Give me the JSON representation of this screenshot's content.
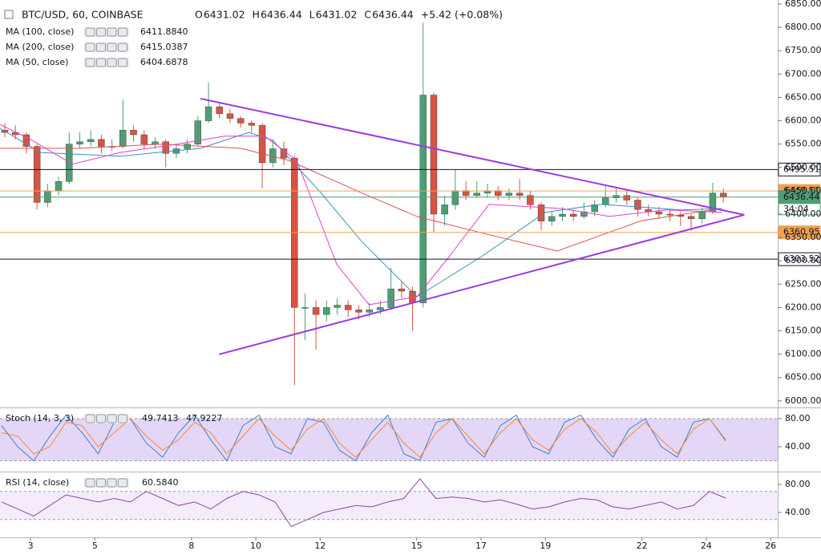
{
  "chart_data": [
    {
      "type": "candlestick",
      "title": "BTC/USD, 60, COINBASE",
      "ohlc": [
        {
          "label": "O",
          "value": 6431.02
        },
        {
          "label": "H",
          "value": 6436.44
        },
        {
          "label": "L",
          "value": 6431.02
        },
        {
          "label": "C",
          "value": 6436.44
        }
      ],
      "change": "+5.42 (+0.08%)",
      "up_color": "#4f9e73",
      "down_color": "#d75442",
      "xlim": [
        2.05,
        26.22
      ],
      "xticks": [
        3,
        5,
        8,
        10,
        12,
        15,
        17,
        19,
        22,
        24,
        26
      ],
      "ylim": [
        5986,
        6858.6
      ],
      "yticks": [
        {
          "value": 6000,
          "label": "6000.00"
        },
        {
          "value": 6050,
          "label": "6050.00"
        },
        {
          "value": 6100,
          "label": "6100.00"
        },
        {
          "value": 6150,
          "label": "6150.00"
        },
        {
          "value": 6200,
          "label": "6200.00"
        },
        {
          "value": 6250,
          "label": "6250.00"
        },
        {
          "value": 6300,
          "label": "6300.00"
        },
        {
          "value": 6350,
          "label": "6350.00"
        },
        {
          "value": 6400,
          "label": "6400.00"
        },
        {
          "value": 6450,
          "label": "6450.00"
        },
        {
          "value": 6500,
          "label": "6500.00"
        },
        {
          "value": 6550,
          "label": "6550.00"
        },
        {
          "value": 6600,
          "label": "6600.00"
        },
        {
          "value": 6650,
          "label": "6650.00"
        },
        {
          "value": 6700,
          "label": "6700.00"
        },
        {
          "value": 6750,
          "label": "6750.00"
        },
        {
          "value": 6800,
          "label": "6800.00"
        },
        {
          "value": 6850,
          "label": "6850.00"
        }
      ],
      "x": [
        2.2,
        2.53,
        2.87,
        3.2,
        3.53,
        3.87,
        4.2,
        4.53,
        4.87,
        5.2,
        5.53,
        5.87,
        6.2,
        6.53,
        6.87,
        7.2,
        7.53,
        7.87,
        8.2,
        8.53,
        8.87,
        9.2,
        9.53,
        9.87,
        10.2,
        10.53,
        10.87,
        11.2,
        11.53,
        11.87,
        12.2,
        12.53,
        12.87,
        13.2,
        13.53,
        13.87,
        14.2,
        14.53,
        14.87,
        15.2,
        15.53,
        15.87,
        16.2,
        16.53,
        16.87,
        17.2,
        17.53,
        17.87,
        18.2,
        18.53,
        18.87,
        19.2,
        19.53,
        19.87,
        20.2,
        20.53,
        20.87,
        21.2,
        21.53,
        21.87,
        22.2,
        22.53,
        22.87,
        23.2,
        23.53,
        23.87,
        24.2,
        24.53
      ],
      "open": [
        6580,
        6575,
        6570,
        6545,
        6425,
        6450,
        6470,
        6550,
        6555,
        6560,
        6545,
        6545,
        6580,
        6570,
        6550,
        6555,
        6530,
        6540,
        6550,
        6600,
        6630,
        6615,
        6605,
        6595,
        6590,
        6510,
        6540,
        6520,
        6200,
        6200,
        6185,
        6200,
        6205,
        6195,
        6190,
        6195,
        6200,
        6240,
        6235,
        6210,
        6655,
        6400,
        6420,
        6450,
        6440,
        6445,
        6450,
        6440,
        6445,
        6440,
        6420,
        6385,
        6395,
        6400,
        6395,
        6405,
        6420,
        6435,
        6440,
        6430,
        6410,
        6405,
        6400,
        6398,
        6395,
        6390,
        6405,
        6445
      ],
      "high": [
        6595,
        6590,
        6575,
        6550,
        6465,
        6480,
        6575,
        6575,
        6580,
        6570,
        6560,
        6645,
        6590,
        6580,
        6565,
        6560,
        6550,
        6560,
        6610,
        6682,
        6640,
        6625,
        6610,
        6600,
        6595,
        6560,
        6555,
        6525,
        6230,
        6215,
        6215,
        6220,
        6215,
        6205,
        6210,
        6215,
        6285,
        6255,
        6245,
        6810,
        6660,
        6440,
        6495,
        6470,
        6470,
        6465,
        6460,
        6455,
        6475,
        6450,
        6425,
        6405,
        6415,
        6410,
        6425,
        6430,
        6460,
        6455,
        6450,
        6435,
        6420,
        6415,
        6410,
        6405,
        6400,
        6415,
        6467,
        6455
      ],
      "low": [
        6565,
        6560,
        6530,
        6410,
        6415,
        6440,
        6465,
        6540,
        6545,
        6530,
        6535,
        6540,
        6555,
        6540,
        6540,
        6500,
        6520,
        6530,
        6545,
        6595,
        6605,
        6595,
        6585,
        6575,
        6455,
        6500,
        6505,
        6034,
        6130,
        6110,
        6170,
        6185,
        6180,
        6175,
        6180,
        6185,
        6195,
        6220,
        6150,
        6200,
        6360,
        6375,
        6410,
        6430,
        6435,
        6435,
        6430,
        6430,
        6430,
        6410,
        6365,
        6375,
        6385,
        6385,
        6390,
        6395,
        6415,
        6425,
        6420,
        6395,
        6395,
        6390,
        6385,
        6375,
        6365,
        6380,
        6400,
        6425
      ],
      "close": [
        6575,
        6570,
        6545,
        6425,
        6450,
        6470,
        6550,
        6555,
        6560,
        6545,
        6545,
        6580,
        6570,
        6550,
        6555,
        6530,
        6540,
        6550,
        6600,
        6630,
        6615,
        6605,
        6595,
        6590,
        6510,
        6540,
        6520,
        6200,
        6200,
        6185,
        6200,
        6205,
        6195,
        6190,
        6195,
        6200,
        6240,
        6235,
        6210,
        6655,
        6400,
        6420,
        6450,
        6440,
        6445,
        6450,
        6440,
        6445,
        6440,
        6420,
        6385,
        6395,
        6400,
        6395,
        6405,
        6420,
        6435,
        6440,
        6430,
        6410,
        6405,
        6400,
        6398,
        6395,
        6390,
        6405,
        6445,
        6436.44
      ],
      "series": [
        {
          "name": "MA (100, close)",
          "last": "6411.8840",
          "color": "#3a8fb7",
          "x": [
            2.05,
            3.3,
            5.79,
            8.28,
            9.78,
            10.53,
            12.02,
            13.27,
            15.01,
            17.01,
            19.0,
            20.74,
            23.23,
            24.48
          ],
          "values": [
            6584,
            6532,
            6524,
            6541,
            6575,
            6558,
            6446,
            6343,
            6223,
            6309,
            6404,
            6421,
            6409,
            6412
          ]
        },
        {
          "name": "MA (200, close)",
          "last": "6415.0387",
          "color": "#d9534f",
          "x": [
            2.05,
            4.54,
            7.04,
            9.53,
            11.02,
            13.27,
            15.01,
            17.01,
            19.37,
            21.99,
            24.48
          ],
          "values": [
            6541,
            6541,
            6550,
            6541,
            6515,
            6446,
            6395,
            6360,
            6321,
            6386,
            6412
          ]
        },
        {
          "name": "MA (50, close)",
          "last": "6404.6878",
          "color": "#e040d0",
          "x": [
            2.05,
            3.05,
            4.3,
            5.79,
            7.54,
            9.03,
            10.28,
            11.27,
            12.52,
            13.52,
            15.01,
            16.01,
            17.25,
            19.5,
            20.99,
            22.74,
            24.48
          ],
          "values": [
            6592,
            6558,
            6507,
            6532,
            6550,
            6567,
            6567,
            6515,
            6292,
            6206,
            6223,
            6309,
            6421,
            6412,
            6395,
            6409,
            6404
          ]
        }
      ],
      "price_lines": [
        {
          "value": 6495.51,
          "color": "#131722",
          "text_color": "#131722",
          "box": "#ffffff"
        },
        {
          "value": 6449.51,
          "color": "#f0a050",
          "text_color": "#ffffff",
          "box": "#f0a050"
        },
        {
          "value": 6436.44,
          "color": "#4f9e73",
          "text_color": "#ffffff",
          "box": "#4f9e73"
        },
        {
          "value": 6360.95,
          "color": "#f0a050",
          "text_color": "#ffffff",
          "box": "#f0a050"
        },
        {
          "value": 6303.52,
          "color": "#131722",
          "text_color": "#131722",
          "box": "#ffffff"
        }
      ],
      "countdown": "34:04",
      "trendlines": [
        {
          "x": [
            8.28,
            25.18
          ],
          "y": [
            6647.4,
            6398.4
          ],
          "color": "#9b3be0"
        },
        {
          "x": [
            8.86,
            25.18
          ],
          "y": [
            6099.7,
            6398.4
          ],
          "color": "#9b3be0"
        }
      ]
    },
    {
      "type": "oscillator",
      "title": "Stoch (14, 3, 3)",
      "ylim": [
        4.6,
        93.7
      ],
      "yticks": [
        {
          "value": 80,
          "label": "80.00"
        },
        {
          "value": 40,
          "label": "40.00"
        }
      ],
      "band": [
        20,
        80
      ],
      "band_color": "#d8c4f2",
      "x": [
        2.1,
        2.6,
        3.1,
        3.6,
        4.1,
        4.6,
        5.1,
        5.6,
        6.1,
        6.6,
        7.1,
        7.6,
        8.1,
        8.6,
        9.1,
        9.6,
        10.1,
        10.6,
        11.1,
        11.6,
        12.1,
        12.6,
        13.1,
        13.6,
        14.1,
        14.6,
        15.1,
        15.6,
        16.1,
        16.6,
        17.1,
        17.6,
        18.1,
        18.6,
        19.1,
        19.6,
        20.1,
        20.6,
        21.1,
        21.6,
        22.1,
        22.6,
        23.1,
        23.6,
        24.1,
        24.6
      ],
      "series": [
        {
          "last": "49.7413",
          "color": "#3d85c6",
          "values": [
            70,
            40,
            20,
            55,
            85,
            60,
            30,
            75,
            80,
            45,
            25,
            60,
            85,
            50,
            20,
            70,
            85,
            40,
            30,
            80,
            75,
            35,
            20,
            60,
            85,
            30,
            20,
            75,
            80,
            45,
            25,
            70,
            85,
            40,
            30,
            75,
            85,
            50,
            25,
            65,
            80,
            40,
            25,
            75,
            80,
            49.74
          ]
        },
        {
          "last": "47.9227",
          "color": "#f08b3c",
          "values": [
            60,
            55,
            30,
            40,
            75,
            70,
            40,
            60,
            80,
            55,
            35,
            50,
            75,
            60,
            30,
            55,
            80,
            55,
            35,
            65,
            80,
            45,
            25,
            50,
            75,
            45,
            25,
            60,
            80,
            55,
            30,
            60,
            80,
            50,
            35,
            65,
            80,
            60,
            30,
            55,
            75,
            50,
            30,
            65,
            80,
            47.92
          ]
        }
      ]
    },
    {
      "type": "oscillator",
      "title": "RSI (14, close)",
      "ylim": [
        4.6,
        96
      ],
      "yticks": [
        {
          "value": 80,
          "label": "80.00"
        },
        {
          "value": 40,
          "label": "40.00"
        }
      ],
      "band": [
        30,
        70
      ],
      "band_color": "#efe4f9",
      "x": [
        2.1,
        2.6,
        3.1,
        3.6,
        4.1,
        4.6,
        5.1,
        5.6,
        6.1,
        6.6,
        7.1,
        7.6,
        8.1,
        8.6,
        9.1,
        9.6,
        10.1,
        10.6,
        11.1,
        11.6,
        12.1,
        12.6,
        13.1,
        13.6,
        14.1,
        14.6,
        15.1,
        15.6,
        16.1,
        16.6,
        17.1,
        17.6,
        18.1,
        18.6,
        19.1,
        19.6,
        20.1,
        20.6,
        21.1,
        21.6,
        22.1,
        22.6,
        23.1,
        23.6,
        24.1,
        24.6
      ],
      "series": [
        {
          "last": "60.5840",
          "color": "#8e44ad",
          "values": [
            55,
            45,
            35,
            50,
            65,
            60,
            55,
            60,
            55,
            70,
            60,
            50,
            55,
            45,
            60,
            70,
            65,
            55,
            20,
            30,
            40,
            45,
            50,
            48,
            55,
            60,
            88,
            60,
            62,
            60,
            55,
            58,
            52,
            45,
            48,
            55,
            60,
            58,
            48,
            45,
            50,
            55,
            45,
            50,
            70,
            60.58
          ]
        }
      ]
    }
  ]
}
